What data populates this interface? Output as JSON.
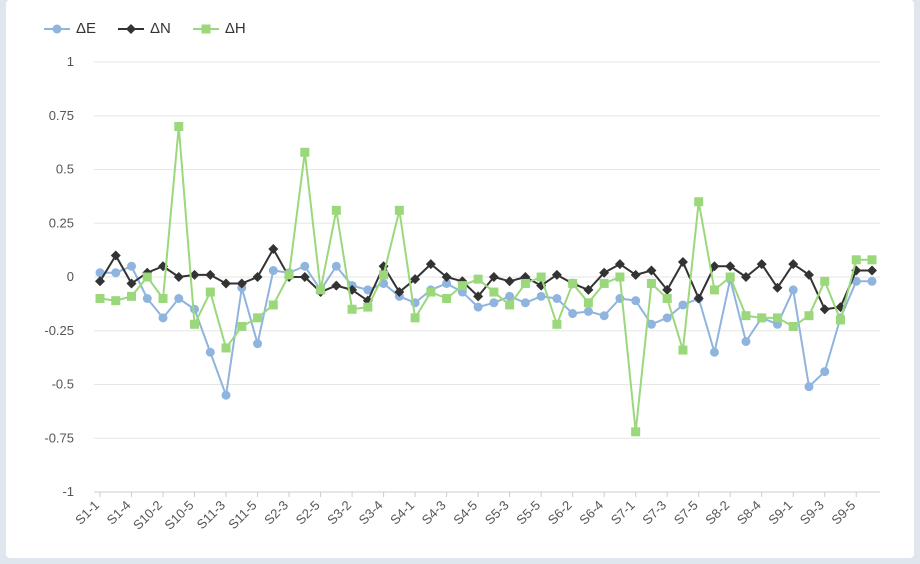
{
  "chart_data": {
    "type": "line",
    "title": "",
    "xlabel": "",
    "ylabel": "",
    "ylim": [
      -1,
      1
    ],
    "yticks": [
      "1",
      "0.75",
      "0.5",
      "0.25",
      "0",
      "-0.25",
      "-0.5",
      "-0.75",
      "-1"
    ],
    "grid": "horizontal",
    "legend_position": "top-left",
    "x_tick_labels": [
      "S1-1",
      "S1-4",
      "S10-2",
      "S10-5",
      "S11-3",
      "S11-5",
      "S2-3",
      "S2-5",
      "S3-2",
      "S3-4",
      "S4-1",
      "S4-3",
      "S4-5",
      "S5-3",
      "S5-5",
      "S6-2",
      "S6-4",
      "S7-1",
      "S7-3",
      "S7-5",
      "S8-2",
      "S8-4",
      "S9-1",
      "S9-3",
      "S9-5"
    ],
    "point_count": 50,
    "series": [
      {
        "name": "ΔE",
        "color": "#8fb4de",
        "marker": "circle",
        "values": [
          0.02,
          0.02,
          0.05,
          -0.1,
          -0.19,
          -0.1,
          -0.15,
          -0.35,
          -0.55,
          -0.05,
          -0.31,
          0.03,
          0.02,
          0.05,
          -0.06,
          0.05,
          -0.04,
          -0.06,
          -0.03,
          -0.09,
          -0.12,
          -0.06,
          -0.03,
          -0.07,
          -0.14,
          -0.12,
          -0.09,
          -0.12,
          -0.09,
          -0.1,
          -0.17,
          -0.16,
          -0.18,
          -0.1,
          -0.11,
          -0.22,
          -0.19,
          -0.13,
          -0.1,
          -0.35,
          -0.01,
          -0.3,
          -0.19,
          -0.22,
          -0.06,
          -0.51,
          -0.44,
          -0.19,
          -0.02,
          -0.02
        ]
      },
      {
        "name": "ΔN",
        "color": "#333333",
        "marker": "diamond",
        "values": [
          -0.02,
          0.1,
          -0.03,
          0.02,
          0.05,
          0.0,
          0.01,
          0.01,
          -0.03,
          -0.03,
          0.0,
          0.13,
          0.0,
          0.0,
          -0.07,
          -0.04,
          -0.06,
          -0.11,
          0.05,
          -0.07,
          -0.01,
          0.06,
          0.0,
          -0.02,
          -0.09,
          0.0,
          -0.02,
          0.0,
          -0.04,
          0.01,
          -0.03,
          -0.06,
          0.02,
          0.06,
          0.01,
          0.03,
          -0.06,
          0.07,
          -0.1,
          0.05,
          0.05,
          0.0,
          0.06,
          -0.05,
          0.06,
          0.01,
          -0.15,
          -0.14,
          0.03,
          0.03
        ]
      },
      {
        "name": "ΔH",
        "color": "#9bd87c",
        "marker": "square",
        "values": [
          -0.1,
          -0.11,
          -0.09,
          0.0,
          -0.1,
          0.7,
          -0.22,
          -0.07,
          -0.33,
          -0.23,
          -0.19,
          -0.13,
          0.01,
          0.58,
          -0.06,
          0.31,
          -0.15,
          -0.14,
          0.01,
          0.31,
          -0.19,
          -0.07,
          -0.1,
          -0.04,
          -0.01,
          -0.07,
          -0.13,
          -0.03,
          0.0,
          -0.22,
          -0.03,
          -0.12,
          -0.03,
          0.0,
          -0.72,
          -0.03,
          -0.1,
          -0.34,
          0.35,
          -0.06,
          0.0,
          -0.18,
          -0.19,
          -0.19,
          -0.23,
          -0.18,
          -0.02,
          -0.2,
          0.08,
          0.08
        ]
      }
    ]
  }
}
